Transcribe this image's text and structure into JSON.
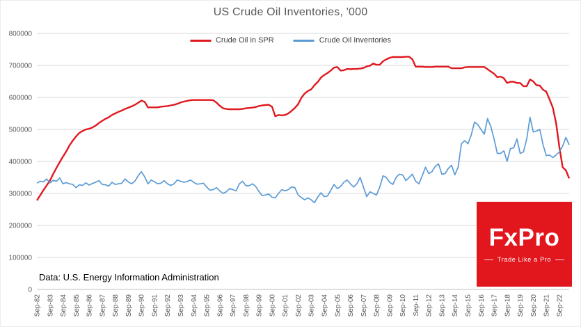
{
  "source_note": "Data: U.S. Energy Information Administration",
  "logo": {
    "brand": "FxPro",
    "tagline": "Trade Like a Pro",
    "bg_color": "#e2161d"
  },
  "chart_data": {
    "type": "line",
    "title": "US Crude Oil Inventories, '000",
    "xlabel": "",
    "ylabel": "",
    "ylim": [
      0,
      800000
    ],
    "y_ticks": [
      0,
      100000,
      200000,
      300000,
      400000,
      500000,
      600000,
      700000,
      800000
    ],
    "grid": true,
    "legend_position": "top-center",
    "x_resolution": "quarterly",
    "points_per_year": 4,
    "x_tick_labels": [
      "Sep-82",
      "Sep-83",
      "Sep-84",
      "Sep-85",
      "Sep-86",
      "Sep-87",
      "Sep-88",
      "Sep-89",
      "Sep-90",
      "Sep-91",
      "Sep-92",
      "Sep-93",
      "Sep-94",
      "Sep-95",
      "Sep-96",
      "Sep-97",
      "Sep-98",
      "Sep-99",
      "Sep-00",
      "Sep-01",
      "Sep-02",
      "Sep-03",
      "Sep-04",
      "Sep-05",
      "Sep-06",
      "Sep-07",
      "Sep-08",
      "Sep-09",
      "Sep-10",
      "Sep-11",
      "Sep-12",
      "Sep-13",
      "Sep-14",
      "Sep-15",
      "Sep-16",
      "Sep-17",
      "Sep-18",
      "Sep-19",
      "Sep-20",
      "Sep-21",
      "Sep-22"
    ],
    "series": [
      {
        "name": "Crude Oil in SPR",
        "color": "#e0191f",
        "values": [
          278000,
          294000,
          310000,
          325000,
          340000,
          361000,
          380000,
          398000,
          415000,
          431000,
          450000,
          465000,
          478000,
          489000,
          495000,
          500000,
          502000,
          506000,
          512000,
          520000,
          527000,
          533000,
          538000,
          545000,
          550000,
          555000,
          559000,
          564000,
          568000,
          572000,
          577000,
          583000,
          590000,
          586000,
          569000,
          569000,
          569000,
          569000,
          571000,
          572000,
          573000,
          575000,
          577000,
          580000,
          584000,
          587000,
          589000,
          591000,
          592000,
          592000,
          592000,
          592000,
          592000,
          592000,
          591000,
          584000,
          574000,
          566000,
          564000,
          563000,
          563000,
          563000,
          563000,
          564000,
          566000,
          567000,
          568000,
          570000,
          573000,
          575000,
          576000,
          577000,
          571000,
          541000,
          545000,
          544000,
          545000,
          550000,
          558000,
          567000,
          579000,
          599000,
          612000,
          620000,
          625000,
          638000,
          648000,
          662000,
          670000,
          676000,
          684000,
          693000,
          695000,
          684000,
          685000,
          689000,
          688000,
          689000,
          689000,
          690000,
          692000,
          697000,
          699000,
          706000,
          702000,
          702000,
          713000,
          719000,
          724000,
          726000,
          726000,
          726000,
          726000,
          727000,
          727000,
          719000,
          696000,
          696000,
          696000,
          695000,
          695000,
          695000,
          696000,
          696000,
          696000,
          696000,
          696000,
          691000,
          691000,
          691000,
          691000,
          694000,
          695000,
          695000,
          695000,
          695000,
          695000,
          695000,
          688000,
          681000,
          674000,
          663000,
          665000,
          660000,
          645000,
          649000,
          649000,
          645000,
          645000,
          635000,
          635000,
          656000,
          650000,
          638000,
          637000,
          624000,
          618000,
          594000,
          568000,
          520000,
          445000,
          382000,
          372000,
          347000
        ]
      },
      {
        "name": "Crude Oil Inventories",
        "color": "#5b9bd5",
        "values": [
          332000,
          338000,
          336000,
          345000,
          333000,
          341000,
          338000,
          348000,
          330000,
          334000,
          330000,
          328000,
          318000,
          327000,
          325000,
          333000,
          326000,
          331000,
          335000,
          340000,
          328000,
          327000,
          323000,
          335000,
          328000,
          330000,
          332000,
          345000,
          336000,
          330000,
          338000,
          355000,
          368000,
          352000,
          330000,
          342000,
          336000,
          330000,
          332000,
          340000,
          330000,
          325000,
          330000,
          342000,
          338000,
          335000,
          337000,
          342000,
          335000,
          329000,
          330000,
          332000,
          320000,
          310000,
          312000,
          318000,
          308000,
          300000,
          305000,
          315000,
          312000,
          308000,
          330000,
          338000,
          324000,
          324000,
          330000,
          322000,
          306000,
          293000,
          295000,
          298000,
          288000,
          286000,
          300000,
          312000,
          308000,
          312000,
          320000,
          318000,
          295000,
          287000,
          280000,
          286000,
          280000,
          271000,
          288000,
          302000,
          290000,
          292000,
          310000,
          328000,
          315000,
          322000,
          335000,
          342000,
          330000,
          320000,
          330000,
          350000,
          320000,
          290000,
          305000,
          300000,
          295000,
          320000,
          355000,
          350000,
          335000,
          328000,
          350000,
          360000,
          358000,
          340000,
          350000,
          360000,
          338000,
          330000,
          355000,
          382000,
          362000,
          368000,
          385000,
          392000,
          360000,
          362000,
          378000,
          388000,
          358000,
          382000,
          455000,
          465000,
          455000,
          482000,
          523000,
          515000,
          500000,
          485000,
          534000,
          509000,
          470000,
          425000,
          425000,
          433000,
          400000,
          440000,
          442000,
          470000,
          425000,
          430000,
          470000,
          538000,
          492000,
          495000,
          500000,
          452000,
          418000,
          420000,
          412000,
          420000,
          430000,
          448000,
          475000,
          452000
        ]
      }
    ]
  }
}
